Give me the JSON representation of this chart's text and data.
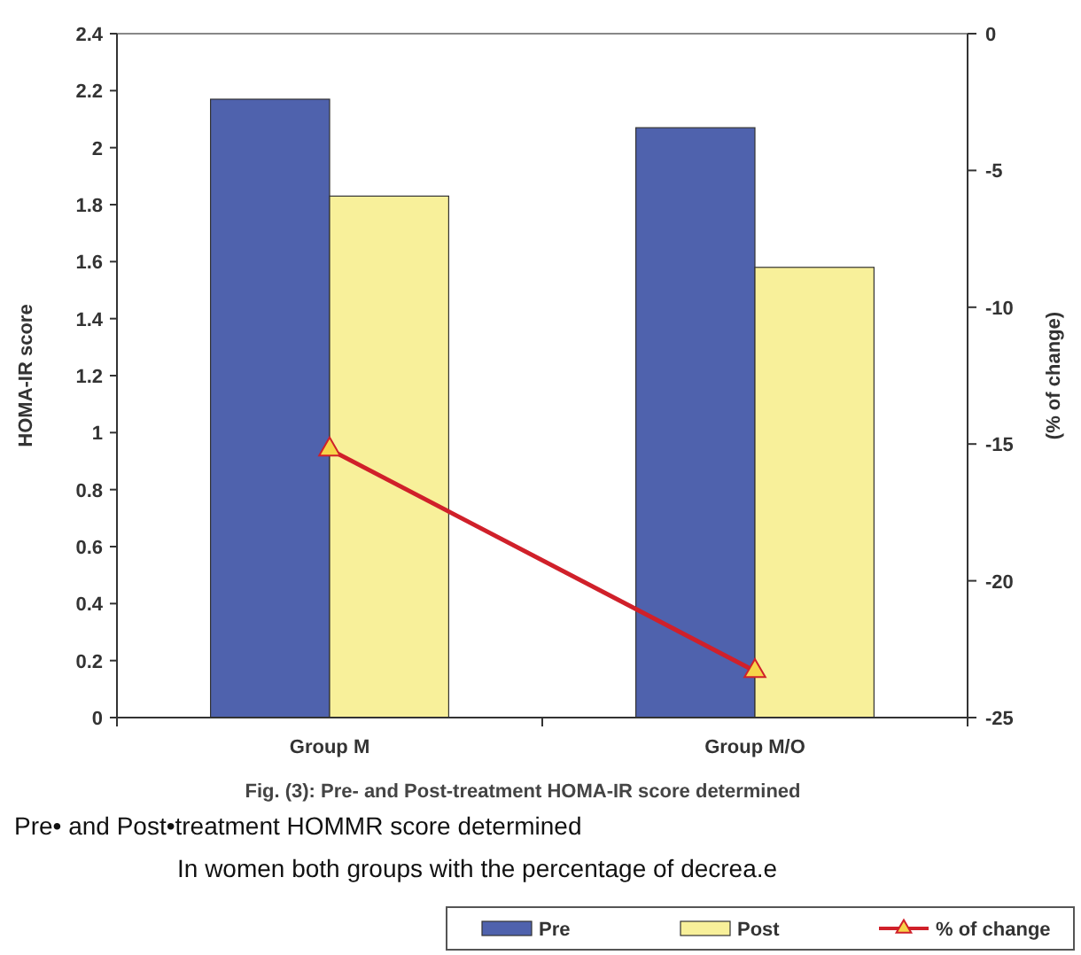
{
  "chart_data": {
    "type": "bar",
    "categories": [
      "Group M",
      "Group M/O"
    ],
    "series": [
      {
        "name": "Pre",
        "color": "#4f62ad",
        "values": [
          2.17,
          2.07
        ]
      },
      {
        "name": "Post",
        "color": "#f8f09a",
        "values": [
          1.83,
          1.58
        ]
      },
      {
        "name": "% of change",
        "type": "line",
        "axis": "y2",
        "color": "#d0202a",
        "marker": "triangle",
        "values": [
          -15.2,
          -23.3
        ]
      }
    ],
    "ylabel": "HOMA-IR score",
    "y2label": "(% of change)",
    "ylim": [
      0,
      2.4
    ],
    "yticks": [
      0,
      0.2,
      0.4,
      0.6,
      0.8,
      1,
      1.2,
      1.4,
      1.6,
      1.8,
      2,
      2.2,
      2.4
    ],
    "y2lim": [
      -25,
      0
    ],
    "y2ticks": [
      -25,
      -20,
      -15,
      -10,
      -5,
      0
    ],
    "annotations": [
      "Fig. (3): Pre- and Post-treatment HOMA-IR score determined",
      "Pre• and Post•treatment HOMMR score determined",
      "In women both groups with the percentage of decrea.e"
    ],
    "grid": false,
    "legend": "bottom right"
  }
}
